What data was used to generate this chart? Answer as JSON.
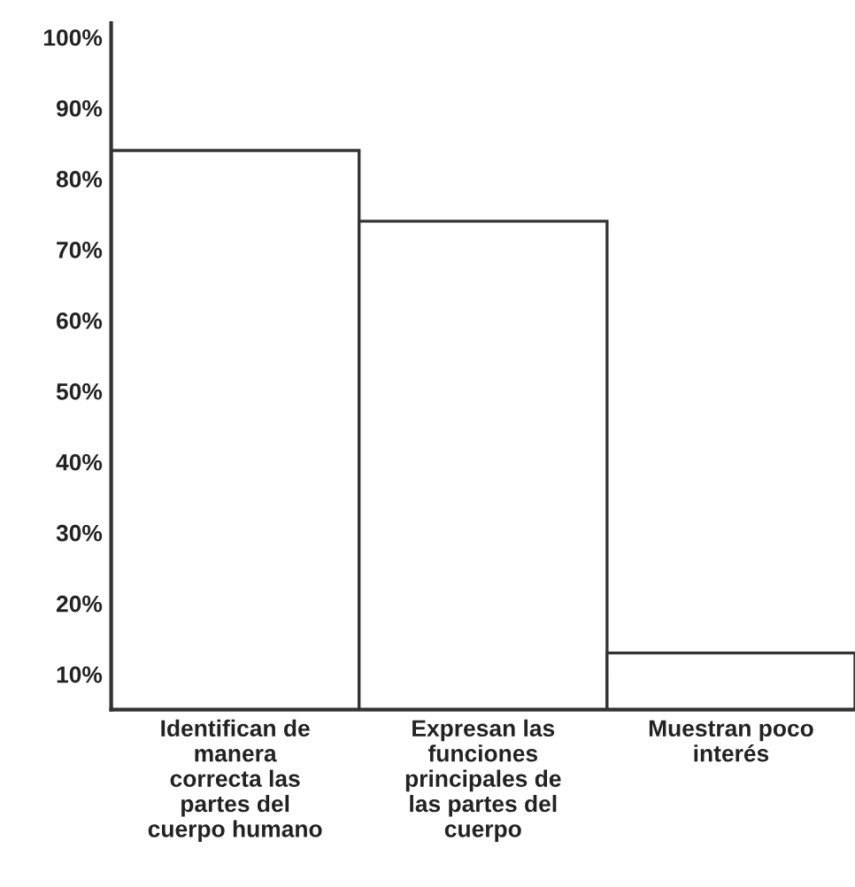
{
  "chart_data": {
    "type": "bar",
    "categories": [
      "Identifican de\nmanera\ncorrecta las\npartes del\ncuerpo humano",
      "Expresan las\nfunciones\nprincipales de\nlas partes del\ncuerpo",
      "Muestran poco\ninterés"
    ],
    "values": [
      84,
      74,
      13
    ],
    "color": "#ffffff",
    "ylim": [
      5,
      102
    ],
    "yticks": [
      {
        "value": 10,
        "label": "10%"
      },
      {
        "value": 20,
        "label": "20%"
      },
      {
        "value": 30,
        "label": "30%"
      },
      {
        "value": 40,
        "label": "40%"
      },
      {
        "value": 50,
        "label": "50%"
      },
      {
        "value": 60,
        "label": "60%"
      },
      {
        "value": 70,
        "label": "70%"
      },
      {
        "value": 80,
        "label": "80%"
      },
      {
        "value": 90,
        "label": "90%"
      },
      {
        "value": 100,
        "label": "100%"
      }
    ],
    "grid": false
  }
}
